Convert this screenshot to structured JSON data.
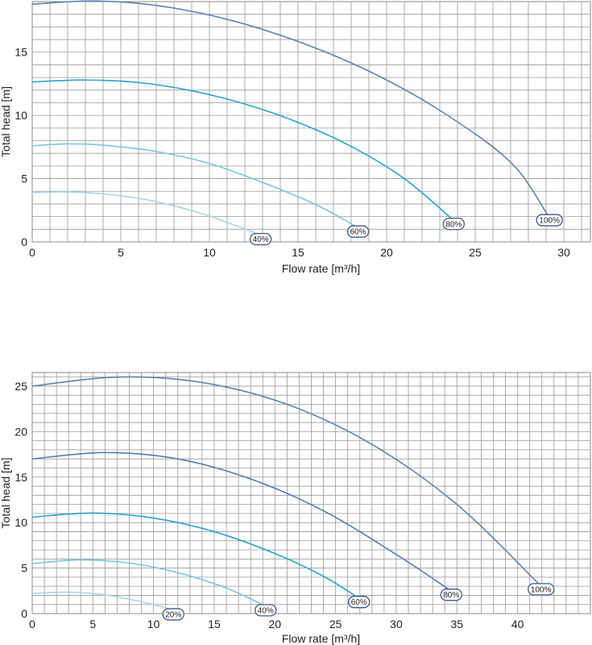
{
  "chart_data": [
    {
      "type": "line",
      "xlabel": "Flow rate [m³/h]",
      "ylabel": "Total head [m]",
      "xlim": [
        0,
        31.5
      ],
      "ylim": [
        0,
        19
      ],
      "x_ticks": [
        0,
        5,
        10,
        15,
        20,
        25,
        30
      ],
      "y_ticks": [
        0,
        5,
        10,
        15
      ],
      "x_minor_step": 1,
      "y_minor_step": 1,
      "grid": true,
      "colors": [
        "#a7d6e6",
        "#79c5dc",
        "#2aa3cc",
        "#5b84b6"
      ],
      "series": [
        {
          "name": "40%",
          "x": [
            0,
            2,
            4,
            6,
            8,
            10,
            12.8
          ],
          "y": [
            3.9,
            3.95,
            3.8,
            3.45,
            2.85,
            2.05,
            0.6
          ]
        },
        {
          "name": "60%",
          "x": [
            0,
            2,
            4,
            7,
            10,
            13,
            16,
            18.3
          ],
          "y": [
            7.6,
            7.75,
            7.65,
            7.15,
            6.2,
            4.7,
            2.95,
            1.2
          ]
        },
        {
          "name": "80%",
          "x": [
            0,
            3,
            6,
            9,
            12,
            15,
            18,
            21,
            23.7
          ],
          "y": [
            12.65,
            12.8,
            12.6,
            11.95,
            10.9,
            9.45,
            7.55,
            5.0,
            1.8
          ]
        },
        {
          "name": "100%",
          "x": [
            0,
            3.5,
            7,
            11,
            15,
            19,
            23,
            27,
            29.1
          ],
          "y": [
            18.8,
            19.05,
            18.7,
            17.6,
            15.85,
            13.5,
            10.4,
            6.3,
            2.1
          ]
        }
      ]
    },
    {
      "type": "line",
      "xlabel": "Flow rate [m³/h]",
      "ylabel": "Total head [m]",
      "xlim": [
        0,
        46
      ],
      "ylim": [
        0,
        26.5
      ],
      "x_ticks": [
        0,
        5,
        10,
        15,
        20,
        25,
        30,
        35,
        40
      ],
      "y_ticks": [
        0,
        5,
        10,
        15,
        20,
        25
      ],
      "x_minor_step": 1,
      "y_minor_step": 1,
      "grid": true,
      "colors": [
        "#a7d6e6",
        "#79c5dc",
        "#2aa3cc",
        "#4f7fb6",
        "#5b84b6"
      ],
      "series": [
        {
          "name": "20%",
          "x": [
            0,
            3,
            6,
            9,
            11.5
          ],
          "y": [
            2.2,
            2.35,
            2.05,
            1.3,
            0.45
          ]
        },
        {
          "name": "40%",
          "x": [
            0,
            4,
            8,
            12,
            16,
            19.1
          ],
          "y": [
            5.5,
            5.9,
            5.55,
            4.5,
            2.8,
            0.9
          ]
        },
        {
          "name": "60%",
          "x": [
            0,
            5,
            10,
            15,
            20,
            24,
            26.8
          ],
          "y": [
            10.6,
            11.05,
            10.5,
            9.0,
            6.6,
            4.1,
            1.8
          ]
        },
        {
          "name": "80%",
          "x": [
            0,
            6,
            12,
            18,
            24,
            30,
            34.4
          ],
          "y": [
            17.0,
            17.7,
            17.0,
            14.8,
            11.3,
            6.5,
            2.6
          ]
        },
        {
          "name": "100%",
          "x": [
            0,
            7,
            14,
            21,
            28,
            35,
            41.8
          ],
          "y": [
            25.0,
            26.0,
            25.4,
            23.0,
            18.6,
            12.0,
            3.2
          ]
        }
      ]
    }
  ]
}
